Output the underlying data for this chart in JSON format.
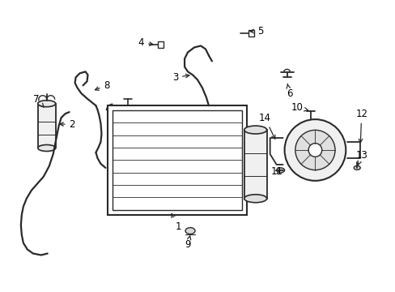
{
  "background_color": "#ffffff",
  "line_color": "#2a2a2a",
  "fig_width": 4.89,
  "fig_height": 3.6,
  "dpi": 100,
  "label_positions": {
    "1": [
      0.435,
      0.305,
      "center"
    ],
    "2": [
      0.175,
      0.555,
      "left"
    ],
    "3": [
      0.295,
      0.595,
      "left"
    ],
    "4": [
      0.365,
      0.875,
      "left"
    ],
    "5": [
      0.635,
      0.895,
      "left"
    ],
    "6": [
      0.72,
      0.745,
      "center"
    ],
    "7": [
      0.1,
      0.46,
      "left"
    ],
    "8": [
      0.255,
      0.56,
      "left"
    ],
    "9": [
      0.335,
      0.285,
      "center"
    ],
    "10": [
      0.755,
      0.64,
      "center"
    ],
    "11": [
      0.655,
      0.445,
      "center"
    ],
    "12": [
      0.865,
      0.615,
      "left"
    ],
    "13": [
      0.86,
      0.465,
      "left"
    ],
    "14": [
      0.625,
      0.57,
      "left"
    ]
  }
}
